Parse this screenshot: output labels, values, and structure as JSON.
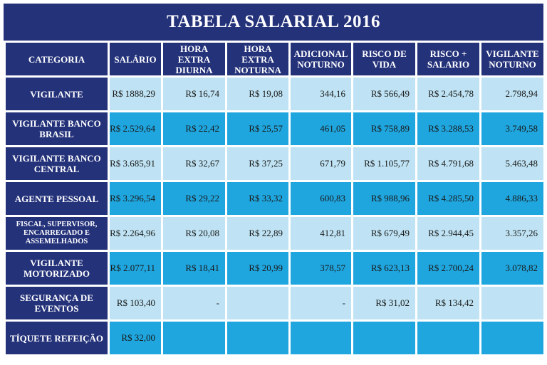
{
  "title": "TABELA SALARIAL 2016",
  "headers": [
    "CATEGORIA",
    "SALÁRIO",
    "HORA EXTRA DIURNA",
    "HORA EXTRA NOTURNA",
    "ADICIONAL NOTURNO",
    "RISCO DE VIDA",
    "RISCO + SALARIO",
    "VIGILANTE NOTURNO"
  ],
  "rows": [
    {
      "categoria": "VIGILANTE",
      "values": [
        "R$ 1888,29",
        "R$ 16,74",
        "R$ 19,08",
        "344,16",
        "R$ 566,49",
        "R$ 2.454,78",
        "2.798,94"
      ]
    },
    {
      "categoria": "VIGILANTE BANCO BRASIL",
      "values": [
        "R$ 2.529,64",
        "R$ 22,42",
        "R$ 25,57",
        "461,05",
        "R$ 758,89",
        "R$ 3.288,53",
        "3.749,58"
      ]
    },
    {
      "categoria": "VIGILANTE BANCO CENTRAL",
      "values": [
        "R$ 3.685,91",
        "R$ 32,67",
        "R$ 37,25",
        "671,79",
        "R$ 1.105,77",
        "R$ 4.791,68",
        "5.463,48"
      ]
    },
    {
      "categoria": "AGENTE PESSOAL",
      "values": [
        "R$ 3.296,54",
        "R$ 29,22",
        "R$ 33,32",
        "600,83",
        "R$ 988,96",
        "R$ 4.285,50",
        "4.886,33"
      ]
    },
    {
      "categoria": "FISCAL, SUPERVISOR, ENCARREGADO E ASSEMELHADOS",
      "values": [
        "R$ 2.264,96",
        "R$ 20,08",
        "R$ 22,89",
        "412,81",
        "R$ 679,49",
        "R$ 2.944,45",
        "3.357,26"
      ]
    },
    {
      "categoria": "VIGILANTE MOTORIZADO",
      "values": [
        "R$ 2.077,11",
        "R$ 18,41",
        "R$ 20,99",
        "378,57",
        "R$ 623,13",
        "R$ 2.700,24",
        "3.078,82"
      ]
    },
    {
      "categoria": "SEGURANÇA DE EVENTOS",
      "values": [
        "R$ 103,40",
        "-",
        "",
        "-",
        "R$ 31,02",
        "R$ 134,42",
        ""
      ]
    },
    {
      "categoria": "TÍQUETE REFEIÇÃO",
      "values": [
        "R$ 32,00",
        "",
        "",
        "",
        "",
        "",
        ""
      ]
    }
  ],
  "colors": {
    "header_bg": "#24327a",
    "row_light": "#bfe3f4",
    "row_dark": "#1fa6df"
  }
}
